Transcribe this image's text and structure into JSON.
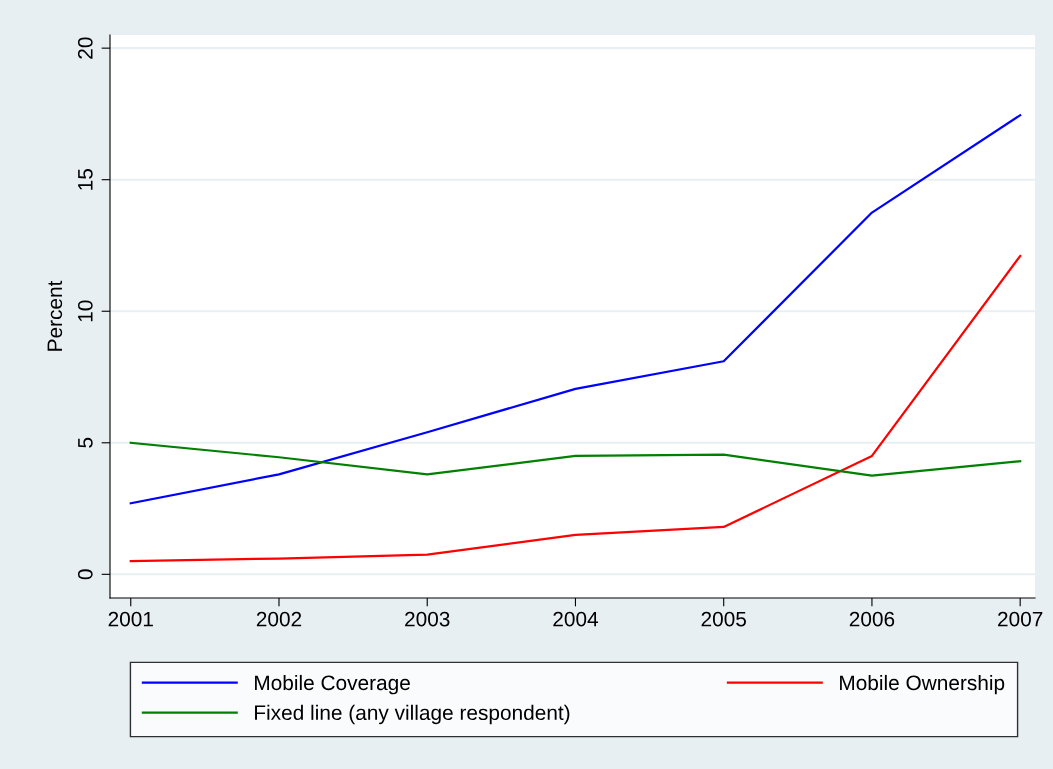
{
  "chart_data": {
    "type": "line",
    "ylabel": "Percent",
    "x": [
      2001,
      2002,
      2003,
      2004,
      2005,
      2006,
      2007
    ],
    "series": [
      {
        "name": "Mobile Coverage",
        "color": "#0000ff",
        "values": [
          2.7,
          3.8,
          5.4,
          7.05,
          8.1,
          13.75,
          17.45
        ]
      },
      {
        "name": "Mobile Ownership",
        "color": "#ff0000",
        "values": [
          0.5,
          0.6,
          0.75,
          1.5,
          1.8,
          4.5,
          12.1
        ]
      },
      {
        "name": "Fixed line (any village respondent)",
        "color": "#008000",
        "values": [
          5.0,
          4.45,
          3.8,
          4.5,
          4.55,
          3.75,
          4.3
        ]
      }
    ],
    "xlim": [
      2000.86,
      2007.1
    ],
    "ylim": [
      -0.9,
      20.5
    ],
    "xticks": [
      2001,
      2002,
      2003,
      2004,
      2005,
      2006,
      2007
    ],
    "yticks": [
      0,
      5,
      10,
      15,
      20
    ],
    "grid": "y",
    "legend": "bottom",
    "marker": "none",
    "line_style": "solid"
  }
}
